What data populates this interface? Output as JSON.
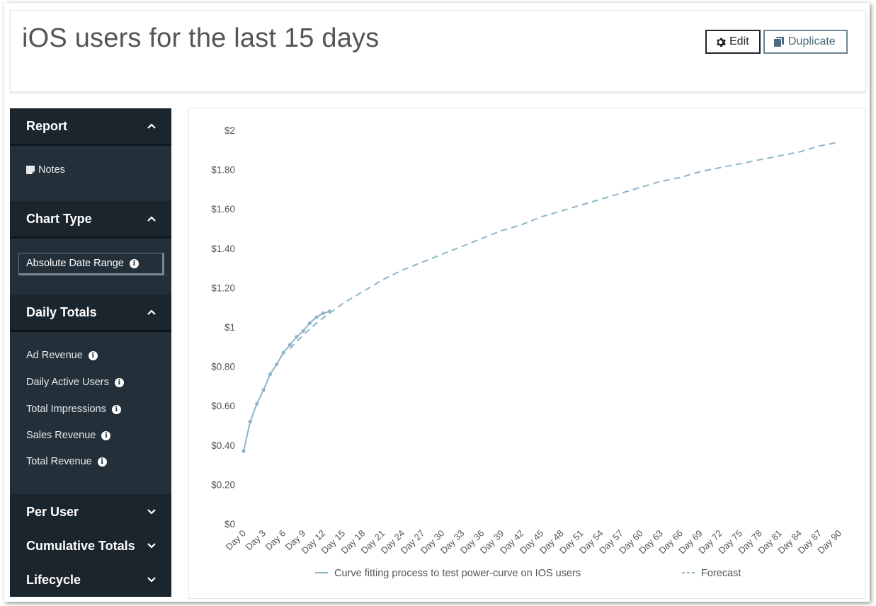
{
  "header": {
    "title": "iOS users for the last 15 days",
    "edit_label": "Edit",
    "duplicate_label": "Duplicate"
  },
  "sidebar": {
    "report": {
      "label": "Report",
      "expanded": true,
      "items": [
        {
          "label": "Notes",
          "icon": "note-icon"
        }
      ]
    },
    "chart_type": {
      "label": "Chart Type",
      "expanded": true,
      "selected": "Absolute Date Range"
    },
    "daily_totals": {
      "label": "Daily Totals",
      "expanded": true,
      "items": [
        {
          "label": "Ad Revenue"
        },
        {
          "label": "Daily Active Users"
        },
        {
          "label": "Total Impressions"
        },
        {
          "label": "Sales Revenue"
        },
        {
          "label": "Total Revenue"
        }
      ]
    },
    "per_user": {
      "label": "Per User",
      "expanded": false
    },
    "cumulative_totals": {
      "label": "Cumulative Totals",
      "expanded": false
    },
    "lifecycle": {
      "label": "Lifecycle",
      "expanded": false
    }
  },
  "colors": {
    "sidebar_bg": "#243039",
    "sidebar_header_bg": "#1b252d",
    "series_color": "#8fb5c9",
    "axis_text": "#555555"
  },
  "chart_data": {
    "type": "line",
    "title": "",
    "xlabel": "",
    "ylabel": "",
    "ylim": [
      0,
      2
    ],
    "y_tick_labels": [
      "$0",
      "$0.20",
      "$0.40",
      "$0.60",
      "$0.80",
      "$1",
      "$1.20",
      "$1.40",
      "$1.60",
      "$1.80",
      "$2"
    ],
    "x_range": [
      0,
      90
    ],
    "x_tick_values": [
      0,
      3,
      6,
      9,
      12,
      15,
      18,
      21,
      24,
      27,
      30,
      33,
      36,
      39,
      42,
      45,
      48,
      51,
      54,
      57,
      60,
      63,
      66,
      69,
      72,
      75,
      78,
      81,
      84,
      87,
      90
    ],
    "x_tick_labels": [
      "Day 0",
      "Day 3",
      "Day 6",
      "Day 9",
      "Day 12",
      "Day 15",
      "Day 18",
      "Day 21",
      "Day 24",
      "Day 27",
      "Day 30",
      "Day 33",
      "Day 36",
      "Day 39",
      "Day 42",
      "Day 45",
      "Day 48",
      "Day 51",
      "Day 54",
      "Day 57",
      "Day 60",
      "Day 63",
      "Day 66",
      "Day 69",
      "Day 72",
      "Day 75",
      "Day 78",
      "Day 81",
      "Day 84",
      "Day 87",
      "Day 90"
    ],
    "legend_position": "bottom",
    "series": [
      {
        "name": "Curve fitting process to test power-curve on IOS users",
        "style": "solid",
        "markers": true,
        "x": [
          0,
          1,
          2,
          3,
          4,
          5,
          6,
          7,
          8,
          9,
          10,
          11,
          12,
          13
        ],
        "y": [
          0.37,
          0.52,
          0.61,
          0.68,
          0.76,
          0.81,
          0.87,
          0.91,
          0.95,
          0.98,
          1.02,
          1.05,
          1.07,
          1.08
        ]
      },
      {
        "name": "Forecast",
        "style": "dashed",
        "markers": false,
        "x": [
          7,
          9,
          11,
          13,
          15,
          18,
          21,
          24,
          27,
          30,
          33,
          36,
          39,
          42,
          45,
          48,
          51,
          54,
          57,
          60,
          63,
          66,
          69,
          72,
          75,
          78,
          81,
          84,
          87,
          90
        ],
        "y": [
          0.89,
          0.96,
          1.02,
          1.07,
          1.12,
          1.18,
          1.24,
          1.29,
          1.33,
          1.37,
          1.41,
          1.45,
          1.49,
          1.52,
          1.56,
          1.59,
          1.62,
          1.65,
          1.68,
          1.71,
          1.74,
          1.76,
          1.79,
          1.81,
          1.83,
          1.85,
          1.87,
          1.89,
          1.92,
          1.94
        ]
      }
    ]
  }
}
